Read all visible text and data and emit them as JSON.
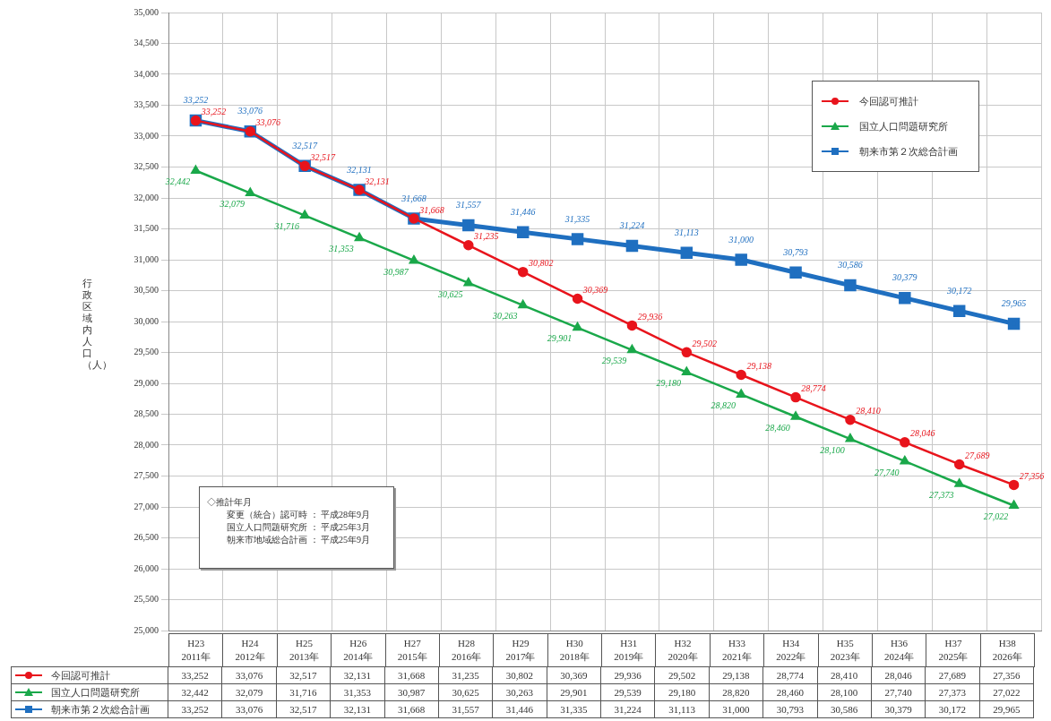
{
  "chart_data": {
    "type": "line",
    "ylabel": "行政区域内人口（人）",
    "categories": [
      "H23\n2011年",
      "H24\n2012年",
      "H25\n2013年",
      "H26\n2014年",
      "H27\n2015年",
      "H28\n2016年",
      "H29\n2017年",
      "H30\n2018年",
      "H31\n2019年",
      "H32\n2020年",
      "H33\n2021年",
      "H34\n2022年",
      "H35\n2023年",
      "H36\n2024年",
      "H37\n2025年",
      "H38\n2026年"
    ],
    "series": [
      {
        "name": "今回認可推計",
        "color": "#e8141c",
        "marker": "circle",
        "values": [
          33252,
          33076,
          32517,
          32131,
          31668,
          31235,
          30802,
          30369,
          29936,
          29502,
          29138,
          28774,
          28410,
          28046,
          27689,
          27356
        ],
        "value_labels": [
          "33,252",
          "33,076",
          "32,517",
          "32,131",
          "31,668",
          "31,235",
          "30,802",
          "30,369",
          "29,936",
          "29,502",
          "29,138",
          "28,774",
          "28,410",
          "28,046",
          "27,689",
          "27,356"
        ]
      },
      {
        "name": "国立人口問題研究所",
        "color": "#1aa84a",
        "marker": "triangle",
        "values": [
          32442,
          32079,
          31716,
          31353,
          30987,
          30625,
          30263,
          29901,
          29539,
          29180,
          28820,
          28460,
          28100,
          27740,
          27373,
          27022
        ],
        "value_labels": [
          "32,442",
          "32,079",
          "31,716",
          "31,353",
          "30,987",
          "30,625",
          "30,263",
          "29,901",
          "29,539",
          "29,180",
          "28,820",
          "28,460",
          "28,100",
          "27,740",
          "27,373",
          "27,022"
        ]
      },
      {
        "name": "朝来市第２次総合計画",
        "color": "#1f6fc0",
        "marker": "square",
        "values": [
          33252,
          33076,
          32517,
          32131,
          31668,
          31557,
          31446,
          31335,
          31224,
          31113,
          31000,
          30793,
          30586,
          30379,
          30172,
          29965
        ],
        "value_labels": [
          "33,252",
          "33,076",
          "32,517",
          "32,131",
          "31,668",
          "31,557",
          "31,446",
          "31,335",
          "31,224",
          "31,113",
          "31,000",
          "30,793",
          "30,586",
          "30,379",
          "30,172",
          "29,965"
        ]
      }
    ],
    "ylim": [
      25000,
      35000
    ],
    "yticks": [
      {
        "value": 25000,
        "label": "25,000"
      },
      {
        "value": 25500,
        "label": "25,500"
      },
      {
        "value": 26000,
        "label": "26,000"
      },
      {
        "value": 26500,
        "label": "26,500"
      },
      {
        "value": 27000,
        "label": "27,000"
      },
      {
        "value": 27500,
        "label": "27,500"
      },
      {
        "value": 28000,
        "label": "28,000"
      },
      {
        "value": 28500,
        "label": "28,500"
      },
      {
        "value": 29000,
        "label": "29,000"
      },
      {
        "value": 29500,
        "label": "29,500"
      },
      {
        "value": 30000,
        "label": "30,000"
      },
      {
        "value": 30500,
        "label": "30,500"
      },
      {
        "value": 31000,
        "label": "31,000"
      },
      {
        "value": 31500,
        "label": "31,500"
      },
      {
        "value": 32000,
        "label": "32,000"
      },
      {
        "value": 32500,
        "label": "32,500"
      },
      {
        "value": 33000,
        "label": "33,000"
      },
      {
        "value": 33500,
        "label": "33,500"
      },
      {
        "value": 34000,
        "label": "34,000"
      },
      {
        "value": 34500,
        "label": "34,500"
      },
      {
        "value": 35000,
        "label": "35,000"
      }
    ],
    "grid": true,
    "legend": "top right",
    "annotations": [
      "◇推計年月",
      "変更（統合）認可時 ： 平成28年9月",
      "国立人口問題研究所 ： 平成25年3月",
      "朝来市地域総合計画 ： 平成25年9月"
    ]
  }
}
